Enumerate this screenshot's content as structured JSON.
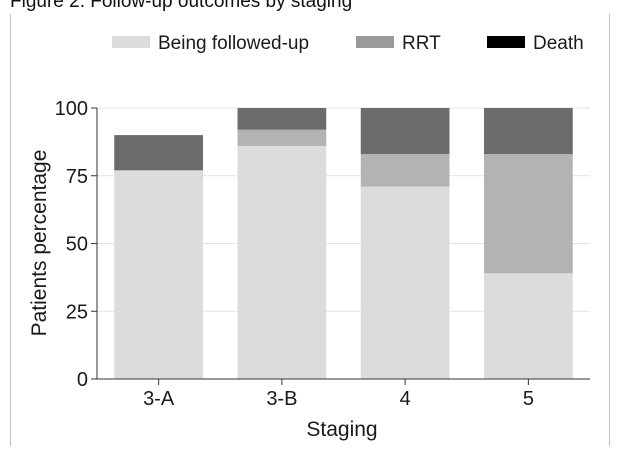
{
  "caption": "Figure 2. Follow-up outcomes by staging",
  "chart_data": {
    "type": "bar",
    "stacked": true,
    "categories": [
      "3-A",
      "3-B",
      "4",
      "5"
    ],
    "series": [
      {
        "name": "Being followed-up",
        "values": [
          77,
          86,
          71,
          39
        ],
        "color": "#dcdcdc"
      },
      {
        "name": "",
        "values": [
          0,
          6,
          12,
          44
        ],
        "color": "#b3b3b3"
      },
      {
        "name": "",
        "values": [
          13,
          8,
          17,
          17
        ],
        "color": "#6b6b6b"
      }
    ],
    "legend": [
      {
        "label": "Being followed-up",
        "color": "#dcdcdc"
      },
      {
        "label": "RRT",
        "color": "#9a9a9a"
      },
      {
        "label": "Death",
        "color": "#000000"
      }
    ],
    "legend_position": "top",
    "xlabel": "Staging",
    "ylabel": "Patients percentage",
    "ylim": [
      0,
      100
    ],
    "yticks": [
      0,
      25,
      50,
      75,
      100
    ],
    "grid": true,
    "grid_color": "#e3e3e3"
  }
}
